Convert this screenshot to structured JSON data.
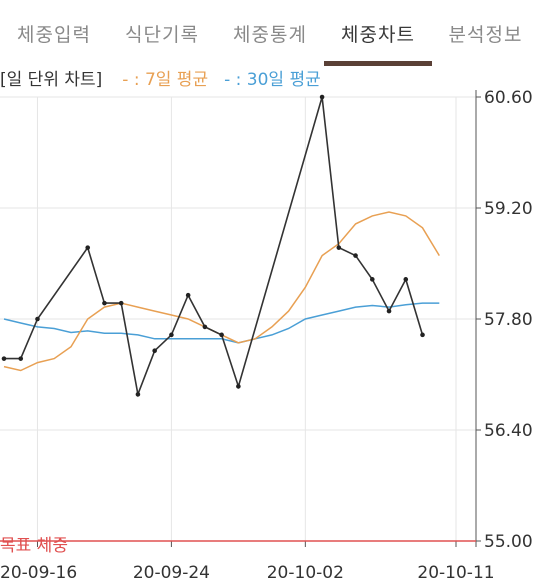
{
  "tabs": [
    {
      "label": "체중입력",
      "active": false
    },
    {
      "label": "식단기록",
      "active": false
    },
    {
      "label": "체중통계",
      "active": false
    },
    {
      "label": "체중차트",
      "active": true
    },
    {
      "label": "분석정보",
      "active": false
    }
  ],
  "legend": {
    "title": "[일 단위 차트]",
    "ma7": "- : 7일 평균",
    "ma30": "- : 30일 평균"
  },
  "target_label": "목표 체중",
  "colors": {
    "weight_line": "#333333",
    "ma7_line": "#e8a053",
    "ma30_line": "#4a9fd6",
    "target_line": "#e05050",
    "grid": "#e6e6e6",
    "active_tab_indicator": "#5a4036"
  },
  "chart_data": {
    "type": "line",
    "x": [
      "2020-09-14",
      "2020-09-15",
      "2020-09-16",
      "2020-09-17",
      "2020-09-18",
      "2020-09-19",
      "2020-09-20",
      "2020-09-21",
      "2020-09-22",
      "2020-09-23",
      "2020-09-24",
      "2020-09-25",
      "2020-09-26",
      "2020-09-27",
      "2020-09-28",
      "2020-09-29",
      "2020-09-30",
      "2020-10-01",
      "2020-10-02",
      "2020-10-03",
      "2020-10-04",
      "2020-10-05",
      "2020-10-06",
      "2020-10-07",
      "2020-10-08",
      "2020-10-09",
      "2020-10-10",
      "2020-10-11"
    ],
    "x_tick_labels": [
      "20-09-16",
      "20-09-24",
      "20-10-02",
      "20-10-11"
    ],
    "x_tick_dates": [
      "2020-09-16",
      "2020-09-24",
      "2020-10-02",
      "2020-10-11"
    ],
    "y_tick_labels": [
      "55.00",
      "56.40",
      "57.80",
      "59.20",
      "60.60"
    ],
    "ylim": [
      55.0,
      60.6
    ],
    "series": [
      {
        "key": "weight",
        "markers": true,
        "values": [
          57.3,
          57.3,
          57.8,
          null,
          null,
          58.7,
          58.0,
          58.0,
          56.85,
          57.4,
          57.6,
          58.1,
          57.7,
          57.6,
          56.95,
          null,
          null,
          null,
          null,
          60.6,
          58.7,
          58.6,
          58.3,
          57.9,
          58.3,
          57.6,
          null,
          null
        ]
      },
      {
        "key": "ma7",
        "markers": false,
        "values": [
          57.2,
          57.15,
          57.25,
          57.3,
          57.45,
          57.8,
          57.95,
          58.0,
          57.95,
          57.9,
          57.85,
          57.8,
          57.7,
          57.6,
          57.5,
          57.55,
          57.7,
          57.9,
          58.2,
          58.6,
          58.75,
          59.0,
          59.1,
          59.15,
          59.1,
          58.95,
          58.6,
          null
        ]
      },
      {
        "key": "ma30",
        "markers": false,
        "values": [
          57.8,
          57.75,
          57.7,
          57.68,
          57.63,
          57.65,
          57.62,
          57.62,
          57.6,
          57.55,
          57.55,
          57.55,
          57.55,
          57.55,
          57.5,
          57.55,
          57.6,
          57.68,
          57.8,
          57.85,
          57.9,
          57.95,
          57.97,
          57.95,
          57.98,
          58.0,
          58.0,
          null
        ]
      }
    ],
    "target": 55.0,
    "grid": true
  }
}
